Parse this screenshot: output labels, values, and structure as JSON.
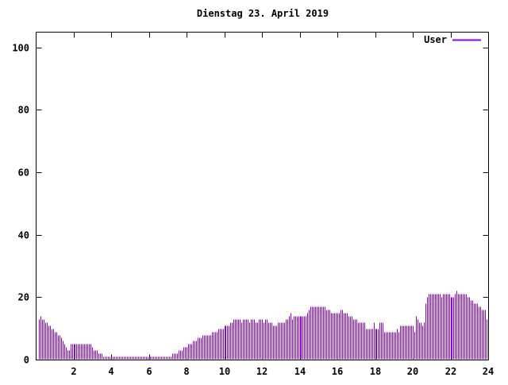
{
  "chart_data": {
    "type": "bar",
    "style": "impulses",
    "title": "Dienstag 23. April 2019",
    "xlabel": "",
    "ylabel": "",
    "xlim": [
      0,
      24
    ],
    "ylim": [
      0,
      105
    ],
    "x_ticks": [
      2,
      4,
      6,
      8,
      10,
      12,
      14,
      16,
      18,
      20,
      22,
      24
    ],
    "y_ticks": [
      0,
      20,
      40,
      60,
      80,
      100
    ],
    "legend_position": "top-right",
    "grid": false,
    "series": [
      {
        "name": "User",
        "color": "#9400d3",
        "interval_minutes": 5,
        "values": [
          0,
          0,
          13,
          14,
          13,
          13,
          12,
          12,
          11,
          11,
          10,
          10,
          9,
          9,
          8,
          8,
          7,
          6,
          5,
          4,
          3,
          3,
          5,
          5,
          5,
          5,
          5,
          5,
          5,
          5,
          5,
          5,
          5,
          5,
          5,
          5,
          4,
          3,
          3,
          3,
          2,
          2,
          2,
          1,
          1,
          1,
          1,
          1,
          1,
          1,
          1,
          1,
          1,
          1,
          1,
          1,
          1,
          1,
          1,
          1,
          1,
          1,
          1,
          1,
          1,
          1,
          1,
          1,
          1,
          1,
          1,
          1,
          1,
          1,
          1,
          1,
          1,
          1,
          1,
          1,
          1,
          1,
          1,
          1,
          1,
          1,
          1,
          2,
          2,
          2,
          2,
          3,
          3,
          3,
          4,
          4,
          4,
          5,
          5,
          5,
          6,
          6,
          6,
          7,
          7,
          7,
          8,
          8,
          8,
          8,
          8,
          8,
          9,
          9,
          9,
          9,
          10,
          10,
          10,
          10,
          11,
          11,
          11,
          11,
          12,
          12,
          13,
          13,
          13,
          13,
          13,
          12,
          13,
          13,
          13,
          13,
          12,
          13,
          13,
          13,
          12,
          12,
          13,
          13,
          13,
          12,
          13,
          13,
          12,
          12,
          12,
          11,
          11,
          11,
          12,
          12,
          12,
          12,
          12,
          13,
          13,
          14,
          15,
          13,
          14,
          14,
          14,
          14,
          14,
          14,
          14,
          14,
          14,
          15,
          16,
          17,
          17,
          17,
          17,
          17,
          17,
          17,
          17,
          17,
          17,
          16,
          16,
          16,
          15,
          15,
          15,
          15,
          15,
          15,
          16,
          16,
          15,
          15,
          15,
          14,
          14,
          14,
          13,
          13,
          13,
          12,
          12,
          12,
          12,
          12,
          10,
          10,
          10,
          10,
          10,
          12,
          10,
          10,
          10,
          12,
          12,
          12,
          9,
          9,
          9,
          9,
          9,
          9,
          9,
          9,
          10,
          9,
          11,
          11,
          11,
          11,
          11,
          11,
          11,
          11,
          11,
          9,
          14,
          13,
          12,
          12,
          11,
          12,
          18,
          20,
          21,
          21,
          21,
          21,
          21,
          21,
          21,
          21,
          20,
          21,
          21,
          21,
          21,
          21,
          20,
          20,
          20,
          21,
          22,
          21,
          21,
          21,
          21,
          21,
          21,
          20,
          20,
          19,
          19,
          18,
          18,
          18,
          17,
          17,
          16,
          16,
          16,
          13
        ]
      }
    ]
  }
}
